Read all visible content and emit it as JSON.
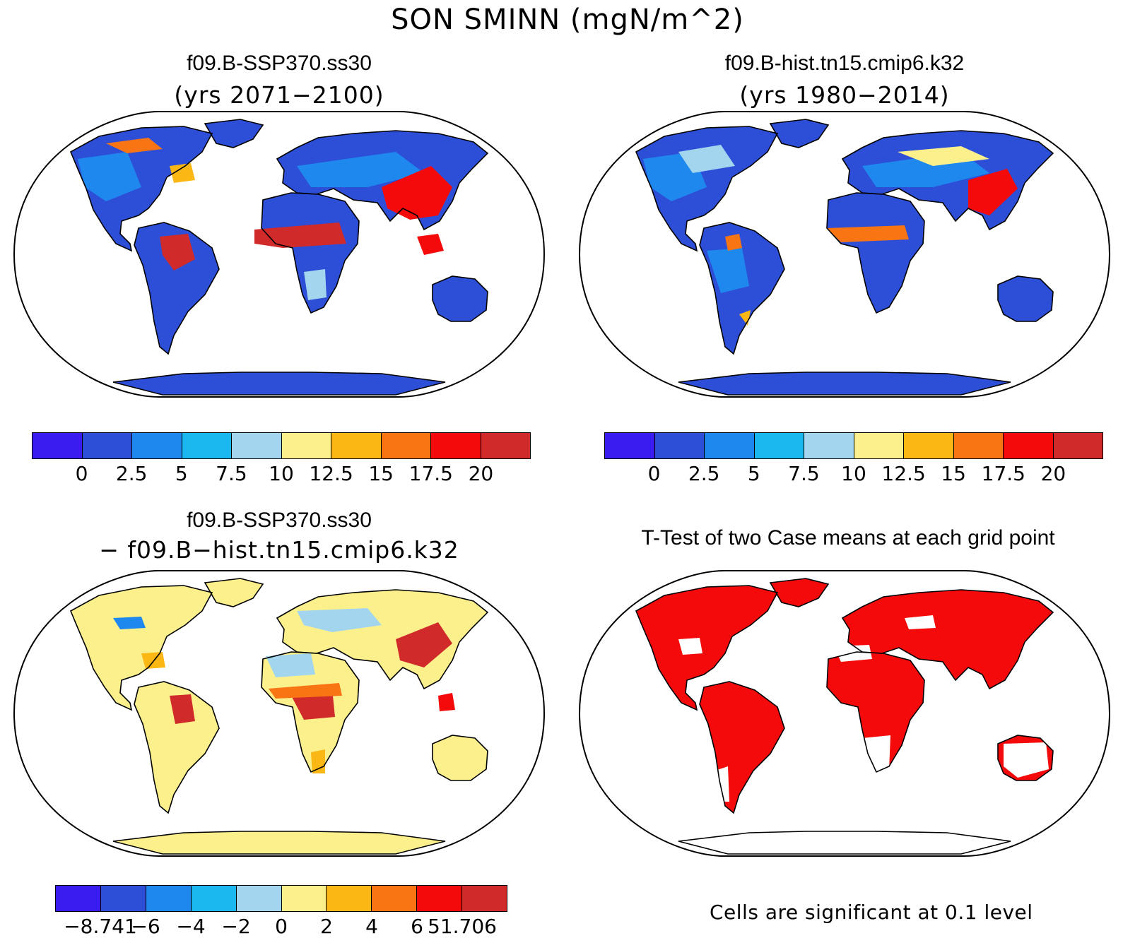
{
  "title": "SON SMINN (mgN/m^2)",
  "panels": [
    {
      "case": "f09.B-SSP370.ss30",
      "sub": "(yrs 2071−2100)"
    },
    {
      "case": "f09.B-hist.tn15.cmip6.k32",
      "sub": "(yrs 1980−2014)"
    },
    {
      "case": "f09.B-SSP370.ss30",
      "sub": "− f09.B−hist.tn15.cmip6.k32"
    },
    {
      "case": "T-Test of two Case means at each grid point"
    }
  ],
  "colorbar_abs": {
    "colors": [
      "#3b1cf0",
      "#2d4fd8",
      "#1f88ee",
      "#1ab8ef",
      "#a3d5ef",
      "#fbf08c",
      "#fbb714",
      "#f97413",
      "#f40a0a",
      "#d12a2a"
    ],
    "labels": [
      "0",
      "2.5",
      "5",
      "7.5",
      "10",
      "12.5",
      "15",
      "17.5",
      "20"
    ]
  },
  "colorbar_diff": {
    "colors": [
      "#3b1cf0",
      "#2d4fd8",
      "#1f88ee",
      "#1ab8ef",
      "#a3d5ef",
      "#fbf08c",
      "#fbb714",
      "#f97413",
      "#f40a0a",
      "#d12a2a"
    ],
    "labels": [
      "−8.741",
      "−6",
      "−4",
      "−2",
      "0",
      "2",
      "4",
      "6",
      "51.706"
    ]
  },
  "significance_note": "Cells are significant at 0.1 level",
  "colors": {
    "background": "#ffffff",
    "ocean": "#ffffff",
    "significant": "#f40a0a",
    "outline": "#000000"
  }
}
